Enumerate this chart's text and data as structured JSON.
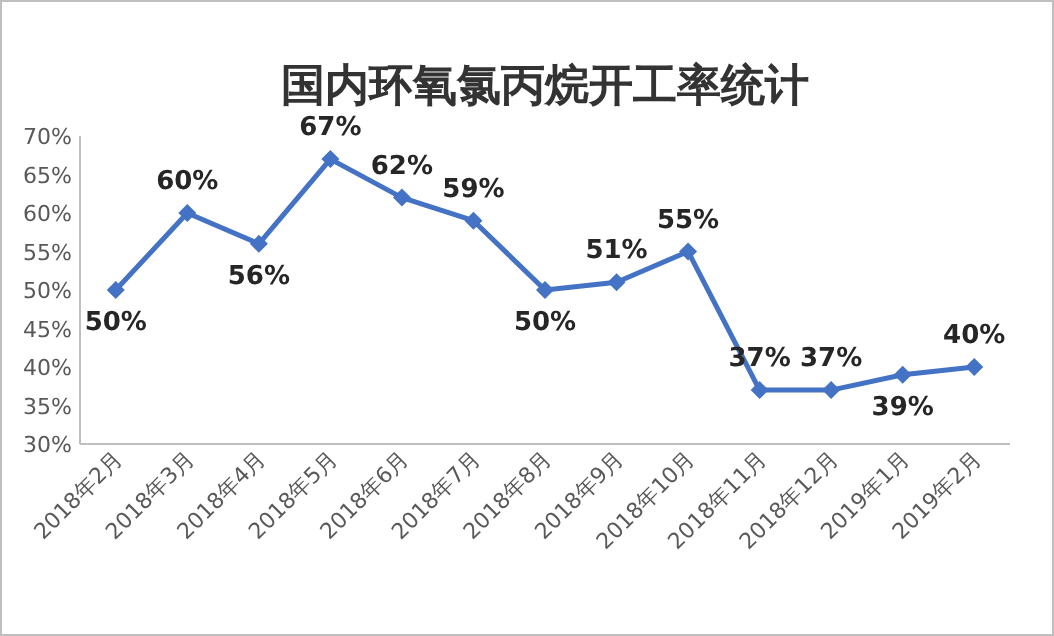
{
  "chart_data": {
    "type": "line",
    "title": "国内环氧氯丙烷开工率统计",
    "categories": [
      "2018年2月",
      "2018年3月",
      "2018年4月",
      "2018年5月",
      "2018年6月",
      "2018年7月",
      "2018年8月",
      "2018年9月",
      "2018年10月",
      "2018年11月",
      "2018年12月",
      "2019年1月",
      "2019年2月"
    ],
    "series": [
      {
        "color": "#4472c4",
        "values": [
          50,
          60,
          56,
          67,
          62,
          59,
          50,
          51,
          55,
          37,
          37,
          39,
          40
        ],
        "value_labels": [
          "50%",
          "60%",
          "56%",
          "67%",
          "62%",
          "59%",
          "50%",
          "51%",
          "55%",
          "37%",
          "37%",
          "39%",
          "40%"
        ]
      }
    ],
    "ylim": [
      30,
      70
    ],
    "yticks": [
      {
        "value": 30,
        "label": "30%"
      },
      {
        "value": 35,
        "label": "35%"
      },
      {
        "value": 40,
        "label": "40%"
      },
      {
        "value": 45,
        "label": "45%"
      },
      {
        "value": 50,
        "label": "50%"
      },
      {
        "value": 55,
        "label": "55%"
      },
      {
        "value": 60,
        "label": "60%"
      },
      {
        "value": 65,
        "label": "65%"
      },
      {
        "value": 70,
        "label": "70%"
      }
    ],
    "marker": "diamond",
    "line_style": "solid",
    "grid": false
  }
}
